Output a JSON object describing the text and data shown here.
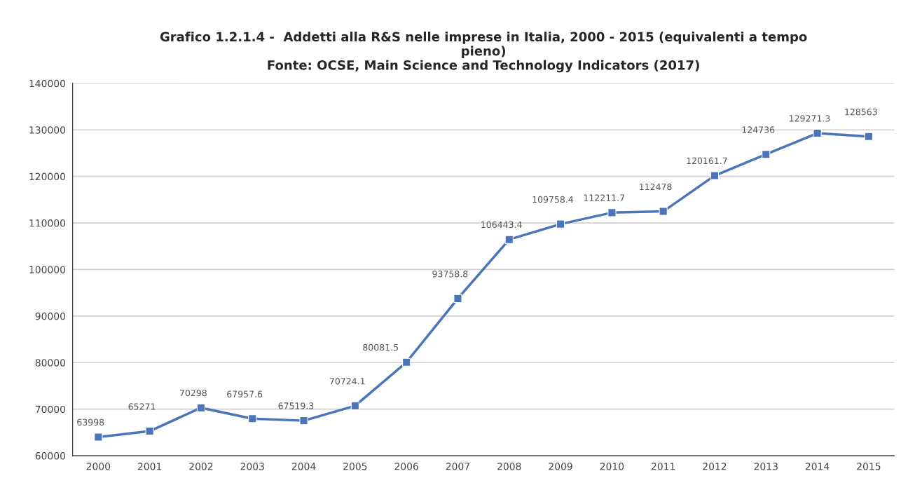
{
  "chart_data": {
    "type": "line",
    "title": "Grafico 1.2.1.4 -  Addetti alla R&S nelle imprese in Italia, 2000 - 2015 (equivalenti a tempo\npieno)\nFonte: OCSE, Main Science and Technology Indicators (2017)",
    "categories": [
      "2000",
      "2001",
      "2002",
      "2003",
      "2004",
      "2005",
      "2006",
      "2007",
      "2008",
      "2009",
      "2010",
      "2011",
      "2012",
      "2013",
      "2014",
      "2015"
    ],
    "series": [
      {
        "color": "#4a75b8",
        "values": [
          63998,
          65271,
          70298,
          67957.6,
          67519.3,
          70724.1,
          80081.5,
          93758.8,
          106443.4,
          109758.4,
          112211.7,
          112478,
          120161.7,
          124736,
          129271.3,
          128563
        ]
      }
    ],
    "ylim": [
      60000,
      140000
    ],
    "yticks": [
      60000,
      70000,
      80000,
      90000,
      100000,
      110000,
      120000,
      130000,
      140000
    ],
    "grid": "y",
    "marker": "square",
    "line_style": "solid",
    "data_labels": true
  }
}
